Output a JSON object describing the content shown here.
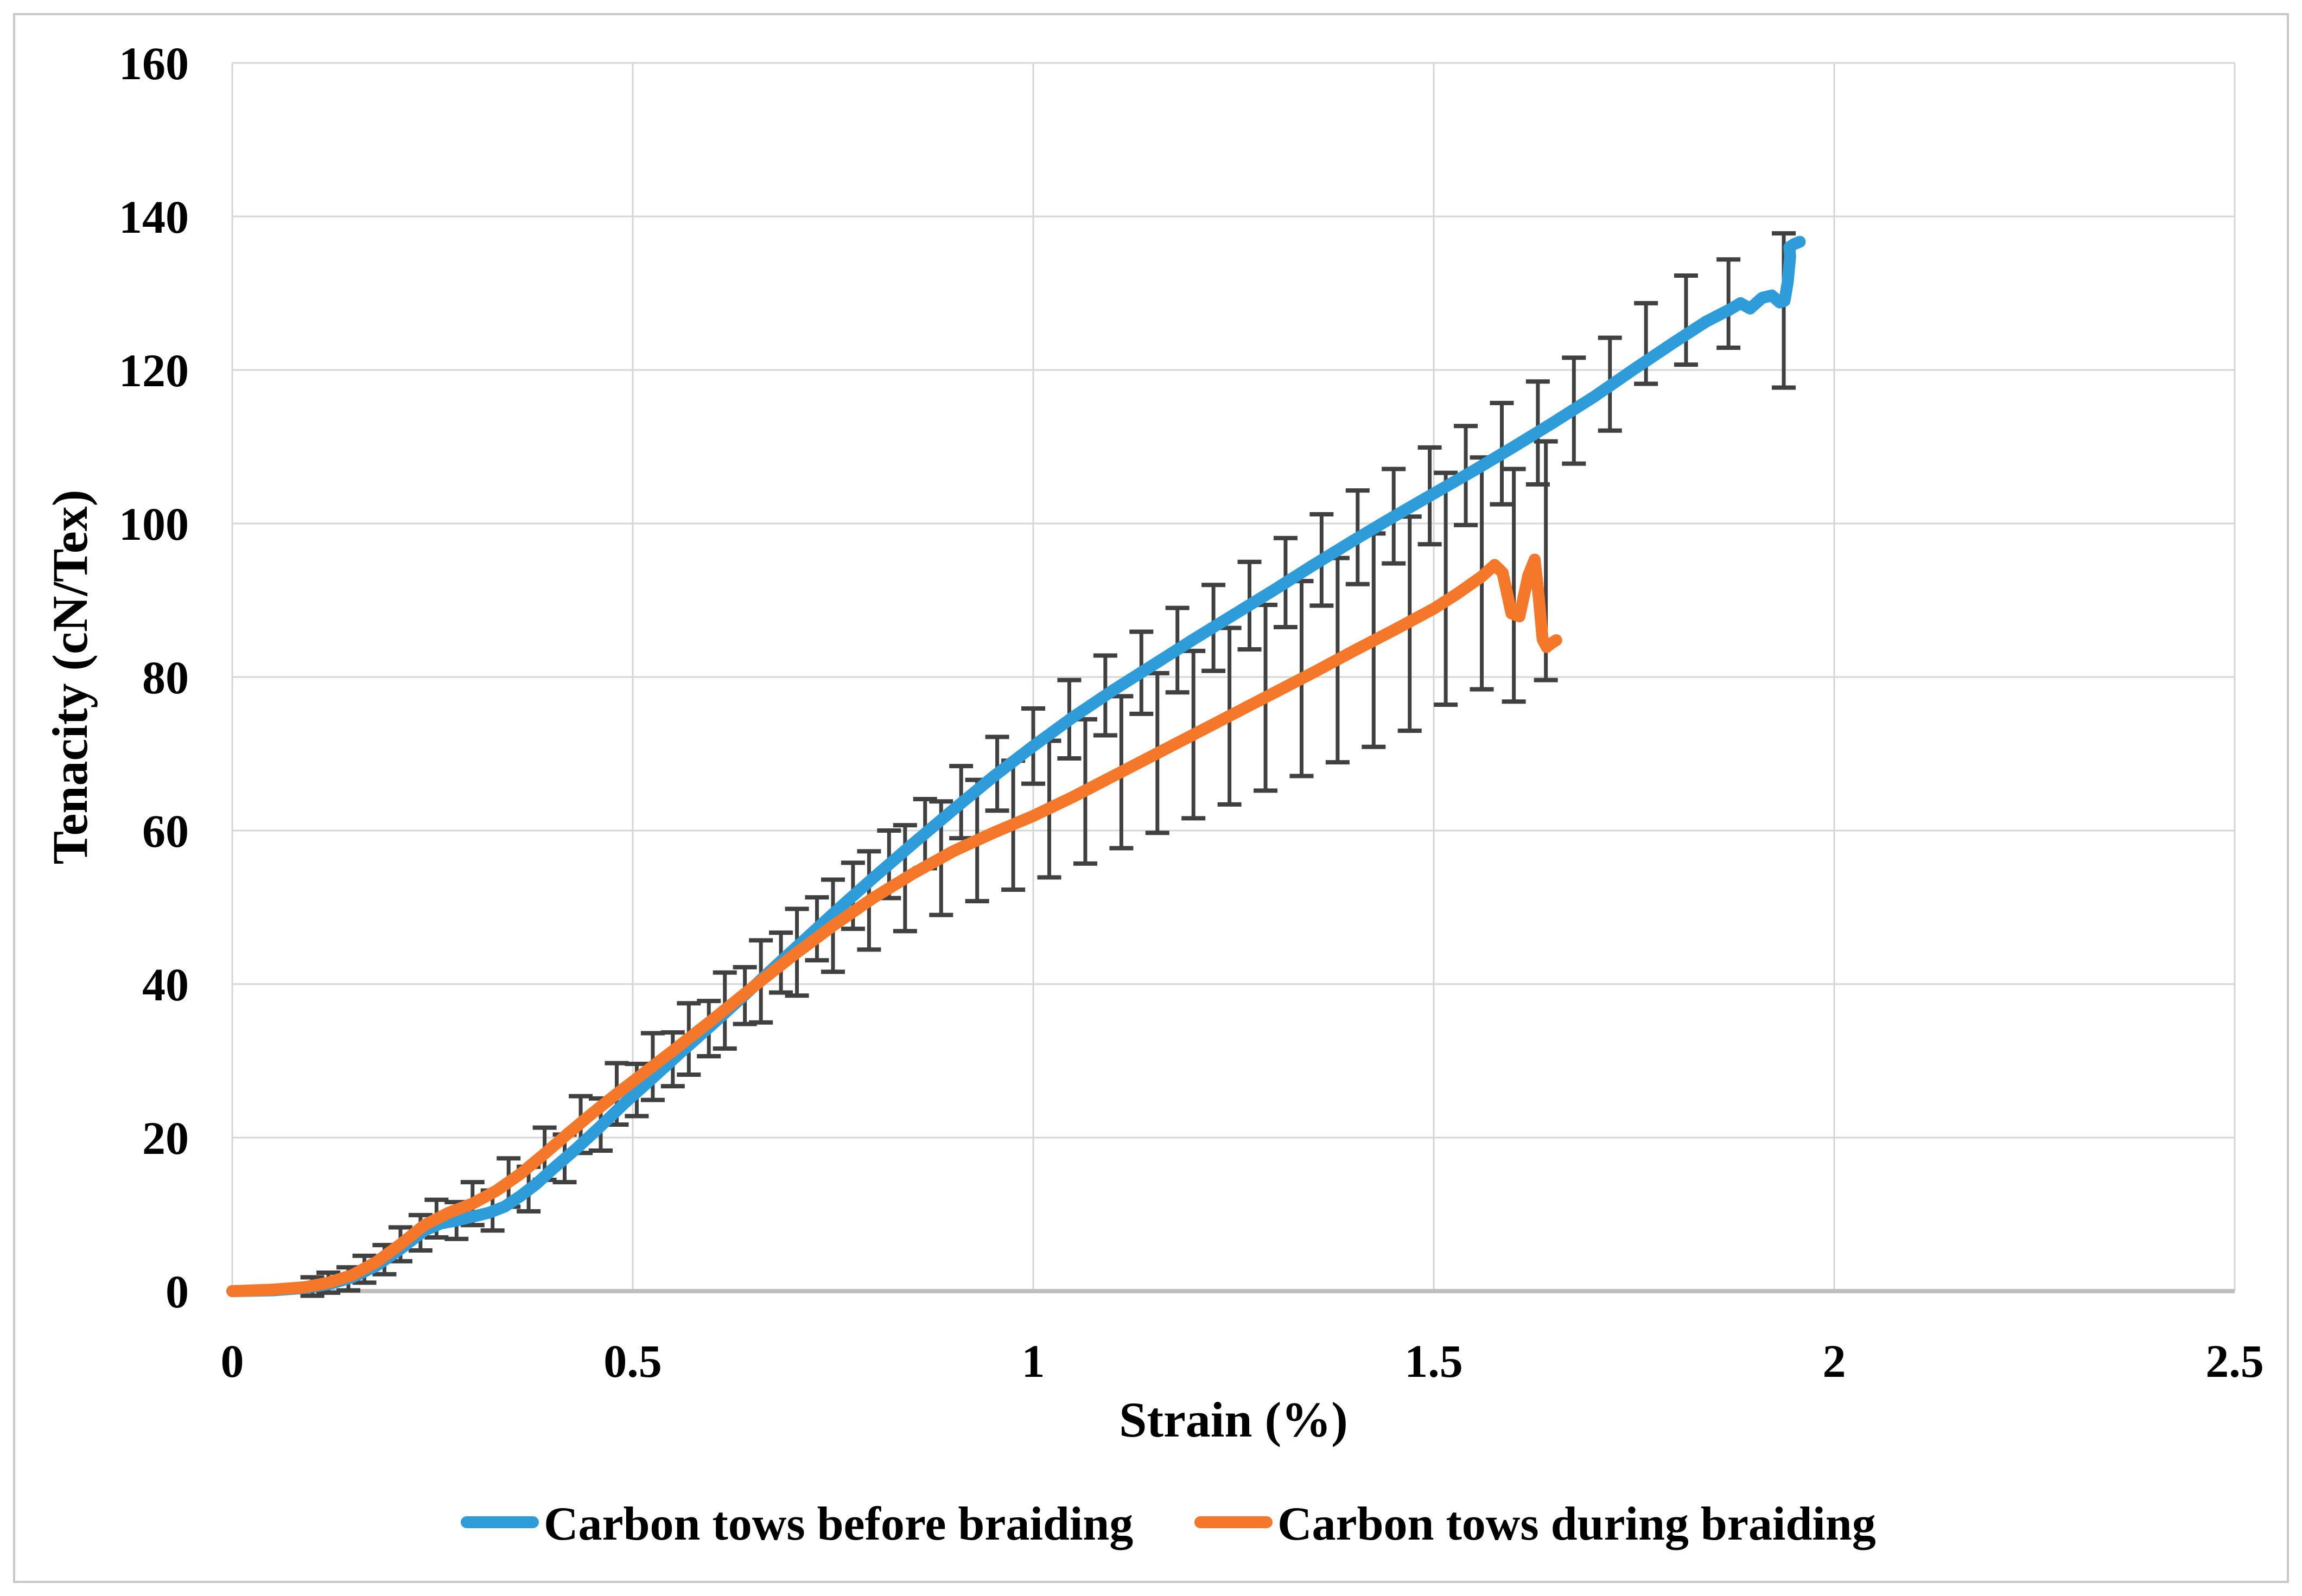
{
  "figure": {
    "background": "#ffffff",
    "border_color": "#c8c8c8"
  },
  "chart_data": {
    "type": "line",
    "title": "",
    "xlabel": "Strain (%)",
    "ylabel": "Tenacity (cN/Tex)",
    "xlim": [
      0,
      2.5
    ],
    "ylim": [
      0,
      160
    ],
    "grid": true,
    "legend_position": "bottom",
    "gridline_color": "#d6d6d6",
    "axis_line_color": "#bfbfbf",
    "error_bar_color": "#404040",
    "x_ticks": [
      "0",
      "0.5",
      "1",
      "1.5",
      "2",
      "2.5"
    ],
    "x_tick_values": [
      0,
      0.5,
      1,
      1.5,
      2,
      2.5
    ],
    "y_ticks": [
      "0",
      "20",
      "40",
      "60",
      "80",
      "100",
      "120",
      "140",
      "160"
    ],
    "y_tick_values": [
      0,
      20,
      40,
      60,
      80,
      100,
      120,
      140,
      160
    ],
    "series": [
      {
        "name": "Carbon tows before braiding",
        "color": "#2e9cd9",
        "points": [
          [
            0.0,
            0.0
          ],
          [
            0.05,
            0.1
          ],
          [
            0.09,
            0.4
          ],
          [
            0.12,
            0.9
          ],
          [
            0.15,
            1.8
          ],
          [
            0.18,
            3.3
          ],
          [
            0.21,
            5.5
          ],
          [
            0.24,
            7.9
          ],
          [
            0.26,
            8.8
          ],
          [
            0.28,
            9.2
          ],
          [
            0.3,
            9.7
          ],
          [
            0.32,
            10.2
          ],
          [
            0.34,
            11.0
          ],
          [
            0.36,
            12.4
          ],
          [
            0.38,
            14.0
          ],
          [
            0.4,
            15.9
          ],
          [
            0.43,
            18.6
          ],
          [
            0.46,
            21.5
          ],
          [
            0.49,
            24.5
          ],
          [
            0.52,
            27.3
          ],
          [
            0.56,
            31.1
          ],
          [
            0.6,
            34.8
          ],
          [
            0.64,
            38.6
          ],
          [
            0.68,
            42.5
          ],
          [
            0.72,
            46.3
          ],
          [
            0.76,
            50.1
          ],
          [
            0.8,
            53.8
          ],
          [
            0.85,
            58.3
          ],
          [
            0.9,
            62.7
          ],
          [
            0.95,
            67.0
          ],
          [
            1.0,
            71.0
          ],
          [
            1.05,
            74.8
          ],
          [
            1.1,
            78.3
          ],
          [
            1.15,
            81.6
          ],
          [
            1.2,
            84.9
          ],
          [
            1.25,
            88.1
          ],
          [
            1.3,
            91.3
          ],
          [
            1.35,
            94.6
          ],
          [
            1.4,
            97.8
          ],
          [
            1.45,
            100.9
          ],
          [
            1.5,
            103.9
          ],
          [
            1.55,
            106.9
          ],
          [
            1.6,
            110.0
          ],
          [
            1.65,
            113.2
          ],
          [
            1.7,
            116.5
          ],
          [
            1.75,
            120.1
          ],
          [
            1.8,
            123.6
          ],
          [
            1.84,
            126.3
          ],
          [
            1.87,
            127.9
          ],
          [
            1.883,
            128.7
          ],
          [
            1.895,
            128.0
          ],
          [
            1.91,
            129.4
          ],
          [
            1.922,
            129.7
          ],
          [
            1.932,
            128.8
          ],
          [
            1.938,
            129.0
          ],
          [
            1.942,
            131.5
          ],
          [
            1.945,
            134.8
          ],
          [
            1.944,
            136.0
          ],
          [
            1.95,
            136.4
          ],
          [
            1.957,
            136.7
          ]
        ],
        "error_bars": [
          [
            0.1,
            -0.6,
            1.8
          ],
          [
            0.145,
            0.1,
            3.1
          ],
          [
            0.19,
            2.2,
            6.0
          ],
          [
            0.235,
            5.3,
            9.9
          ],
          [
            0.28,
            6.8,
            11.6
          ],
          [
            0.325,
            7.9,
            13.1
          ],
          [
            0.37,
            10.4,
            16.2
          ],
          [
            0.415,
            14.2,
            20.4
          ],
          [
            0.46,
            18.3,
            25.1
          ],
          [
            0.505,
            22.8,
            29.6
          ],
          [
            0.55,
            26.7,
            33.7
          ],
          [
            0.595,
            30.6,
            37.8
          ],
          [
            0.64,
            34.8,
            42.2
          ],
          [
            0.685,
            38.9,
            46.7
          ],
          [
            0.73,
            43.1,
            51.3
          ],
          [
            0.775,
            47.2,
            55.8
          ],
          [
            0.82,
            51.2,
            60.0
          ],
          [
            0.865,
            55.1,
            64.1
          ],
          [
            0.91,
            59.0,
            68.4
          ],
          [
            0.955,
            62.6,
            72.2
          ],
          [
            1.0,
            66.1,
            75.9
          ],
          [
            1.045,
            69.4,
            79.6
          ],
          [
            1.09,
            72.4,
            82.8
          ],
          [
            1.135,
            75.2,
            85.9
          ],
          [
            1.18,
            78.0,
            89.0
          ],
          [
            1.225,
            80.8,
            92.0
          ],
          [
            1.27,
            83.6,
            95.0
          ],
          [
            1.315,
            86.5,
            98.1
          ],
          [
            1.36,
            89.3,
            101.2
          ],
          [
            1.405,
            92.1,
            104.3
          ],
          [
            1.45,
            94.8,
            107.1
          ],
          [
            1.495,
            97.3,
            109.9
          ],
          [
            1.54,
            99.8,
            112.7
          ],
          [
            1.585,
            102.5,
            115.7
          ],
          [
            1.63,
            105.1,
            118.5
          ],
          [
            1.675,
            107.8,
            121.6
          ],
          [
            1.72,
            112.1,
            124.2
          ],
          [
            1.765,
            118.2,
            128.7
          ],
          [
            1.815,
            120.7,
            132.3
          ],
          [
            1.868,
            122.9,
            134.4
          ],
          [
            1.937,
            117.7,
            137.8
          ]
        ]
      },
      {
        "name": "Carbon tows during braiding",
        "color": "#f5772a",
        "points": [
          [
            0.0,
            0.0
          ],
          [
            0.05,
            0.2
          ],
          [
            0.09,
            0.5
          ],
          [
            0.12,
            1.1
          ],
          [
            0.15,
            2.1
          ],
          [
            0.18,
            3.8
          ],
          [
            0.21,
            6.1
          ],
          [
            0.24,
            8.6
          ],
          [
            0.27,
            10.2
          ],
          [
            0.3,
            11.4
          ],
          [
            0.33,
            13.1
          ],
          [
            0.36,
            15.3
          ],
          [
            0.39,
            17.9
          ],
          [
            0.42,
            20.6
          ],
          [
            0.45,
            23.2
          ],
          [
            0.48,
            25.7
          ],
          [
            0.51,
            28.1
          ],
          [
            0.55,
            31.3
          ],
          [
            0.6,
            35.4
          ],
          [
            0.65,
            39.6
          ],
          [
            0.7,
            43.7
          ],
          [
            0.75,
            47.6
          ],
          [
            0.8,
            51.2
          ],
          [
            0.85,
            54.4
          ],
          [
            0.9,
            57.3
          ],
          [
            0.95,
            59.7
          ],
          [
            1.0,
            61.9
          ],
          [
            1.05,
            64.4
          ],
          [
            1.1,
            67.1
          ],
          [
            1.15,
            69.8
          ],
          [
            1.2,
            72.5
          ],
          [
            1.25,
            75.2
          ],
          [
            1.3,
            77.9
          ],
          [
            1.35,
            80.6
          ],
          [
            1.4,
            83.4
          ],
          [
            1.45,
            86.1
          ],
          [
            1.5,
            88.9
          ],
          [
            1.53,
            90.9
          ],
          [
            1.56,
            93.1
          ],
          [
            1.576,
            94.6
          ],
          [
            1.586,
            93.6
          ],
          [
            1.597,
            88.3
          ],
          [
            1.607,
            87.9
          ],
          [
            1.618,
            93.2
          ],
          [
            1.626,
            95.3
          ],
          [
            1.631,
            90.5
          ],
          [
            1.636,
            84.9
          ],
          [
            1.641,
            83.9
          ],
          [
            1.647,
            84.4
          ],
          [
            1.653,
            84.8
          ]
        ],
        "error_bars": [
          [
            0.12,
            -0.2,
            2.4
          ],
          [
            0.165,
            1.1,
            4.6
          ],
          [
            0.21,
            3.9,
            8.3
          ],
          [
            0.255,
            7.0,
            11.9
          ],
          [
            0.3,
            8.6,
            14.2
          ],
          [
            0.345,
            11.0,
            17.3
          ],
          [
            0.39,
            14.5,
            21.3
          ],
          [
            0.435,
            18.0,
            25.4
          ],
          [
            0.48,
            21.7,
            29.7
          ],
          [
            0.525,
            24.9,
            33.6
          ],
          [
            0.57,
            28.2,
            37.5
          ],
          [
            0.615,
            31.6,
            41.5
          ],
          [
            0.66,
            35.0,
            45.7
          ],
          [
            0.705,
            38.5,
            49.8
          ],
          [
            0.75,
            41.6,
            53.6
          ],
          [
            0.795,
            44.5,
            57.3
          ],
          [
            0.84,
            46.9,
            60.7
          ],
          [
            0.885,
            49.0,
            63.8
          ],
          [
            0.93,
            50.8,
            66.6
          ],
          [
            0.975,
            52.3,
            69.1
          ],
          [
            1.02,
            53.9,
            71.7
          ],
          [
            1.065,
            55.7,
            74.5
          ],
          [
            1.11,
            57.7,
            77.5
          ],
          [
            1.155,
            59.7,
            80.5
          ],
          [
            1.2,
            61.6,
            83.4
          ],
          [
            1.245,
            63.4,
            86.4
          ],
          [
            1.29,
            65.2,
            89.4
          ],
          [
            1.335,
            67.1,
            92.5
          ],
          [
            1.38,
            68.9,
            95.5
          ],
          [
            1.425,
            70.9,
            98.7
          ],
          [
            1.47,
            73.0,
            100.9
          ],
          [
            1.515,
            76.4,
            106.6
          ],
          [
            1.56,
            78.4,
            108.6
          ],
          [
            1.6,
            76.8,
            107.1
          ],
          [
            1.64,
            79.6,
            110.7
          ]
        ]
      }
    ]
  }
}
